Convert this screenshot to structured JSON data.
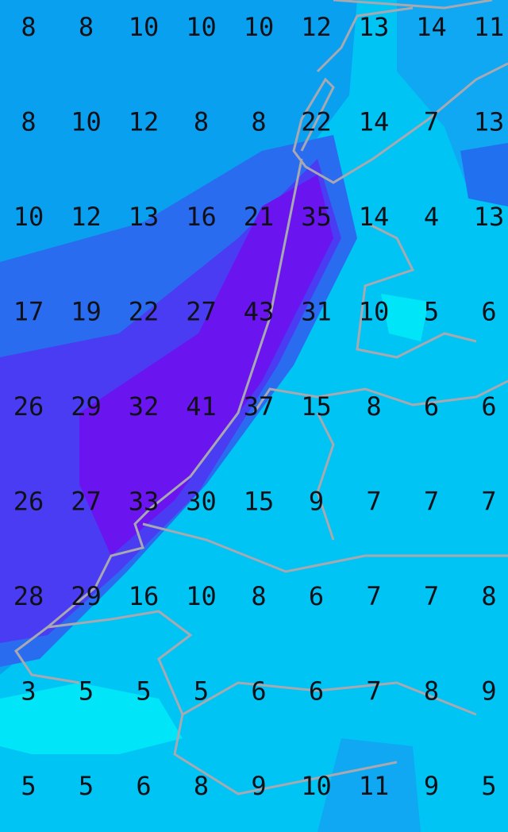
{
  "grid": {
    "rows": [
      [
        8,
        8,
        10,
        10,
        10,
        12,
        13,
        14,
        11
      ],
      [
        8,
        10,
        12,
        8,
        8,
        22,
        14,
        7,
        13
      ],
      [
        10,
        12,
        13,
        16,
        21,
        35,
        14,
        4,
        13
      ],
      [
        17,
        19,
        22,
        27,
        43,
        31,
        10,
        5,
        6
      ],
      [
        26,
        29,
        32,
        41,
        37,
        15,
        8,
        6,
        6
      ],
      [
        26,
        27,
        33,
        30,
        15,
        9,
        7,
        7,
        7
      ],
      [
        28,
        29,
        16,
        10,
        8,
        6,
        7,
        7,
        8
      ],
      [
        3,
        5,
        5,
        5,
        6,
        6,
        7,
        8,
        9
      ],
      [
        5,
        5,
        6,
        8,
        9,
        10,
        11,
        9,
        5
      ]
    ]
  }
}
